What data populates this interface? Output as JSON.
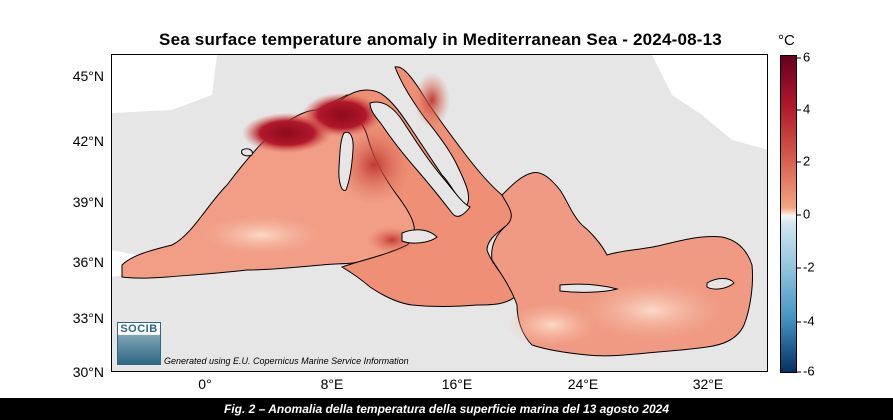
{
  "title": "Sea surface temperature anomaly in Mediterranean Sea - 2024-08-13",
  "colorbar": {
    "unit": "°C",
    "ticks": [
      "6",
      "4",
      "2",
      "0",
      "-2",
      "-4",
      "-6"
    ],
    "range": [
      -6,
      6
    ],
    "colormap": "red-white-blue diverging"
  },
  "axes": {
    "lat_ticks": [
      "45°N",
      "42°N",
      "39°N",
      "36°N",
      "33°N",
      "30°N"
    ],
    "lon_ticks": [
      "0°",
      "8°E",
      "16°E",
      "24°E",
      "32°E"
    ]
  },
  "logo": {
    "text": "SOCIB"
  },
  "credit": "Generated using E.U. Copernicus Marine Service Information",
  "caption": "Fig. 2 – Anomalia della temperatura della superficie marina del 13 agosto 2024",
  "colors": {
    "land": "#e6e6e6",
    "outside_land": "#ffffff",
    "sea_base": "#ef9a86",
    "hot_anomaly": "#a50f15"
  }
}
